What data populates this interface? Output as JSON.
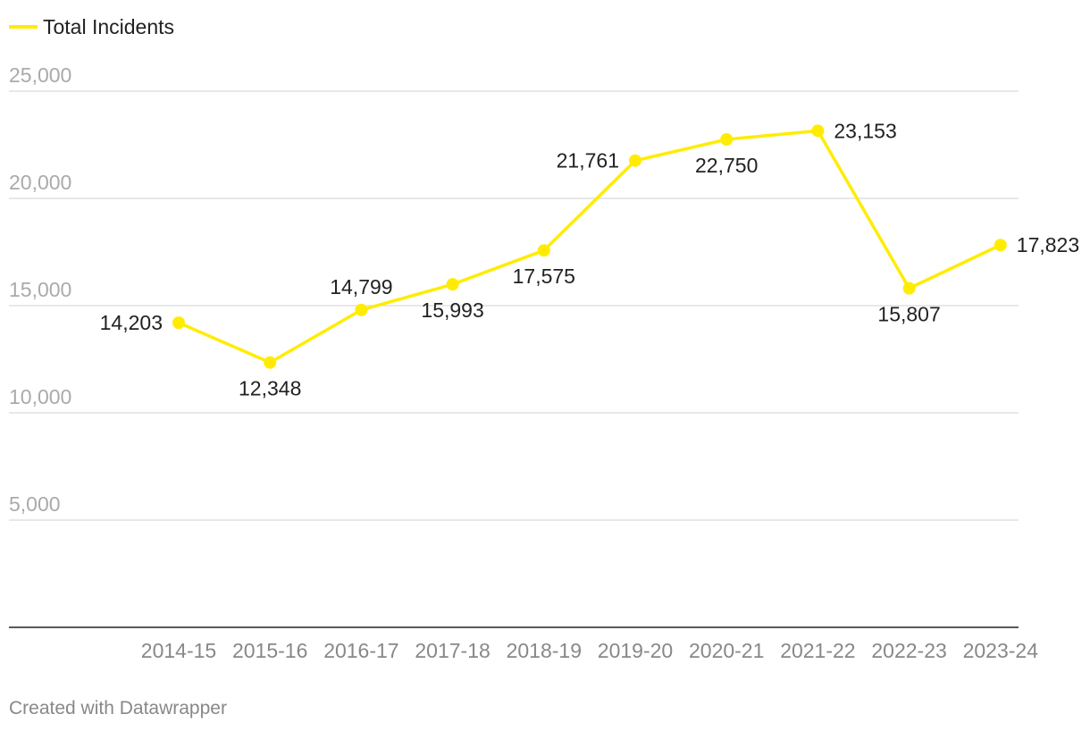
{
  "chart_data": {
    "type": "line",
    "categories": [
      "2014-15",
      "2015-16",
      "2016-17",
      "2017-18",
      "2018-19",
      "2019-20",
      "2020-21",
      "2021-22",
      "2022-23",
      "2023-24"
    ],
    "series": [
      {
        "name": "Total Incidents",
        "values": [
          14203,
          12348,
          14799,
          15993,
          17575,
          21761,
          22750,
          23153,
          15807,
          17823
        ],
        "labels": [
          "14,203",
          "12,348",
          "14,799",
          "15,993",
          "17,575",
          "21,761",
          "22,750",
          "23,153",
          "15,807",
          "17,823"
        ],
        "color": "#ffec00"
      }
    ],
    "yticks": [
      5000,
      10000,
      15000,
      20000,
      25000
    ],
    "ytick_labels": [
      "5,000",
      "10,000",
      "15,000",
      "20,000",
      "25,000"
    ],
    "ylim": [
      0,
      25000
    ],
    "grid": true,
    "legend": "top-left"
  },
  "footer": "Created with Datawrapper",
  "colors": {
    "line": "#ffec00",
    "grid": "#e0e0e0",
    "axis": "#222222"
  }
}
